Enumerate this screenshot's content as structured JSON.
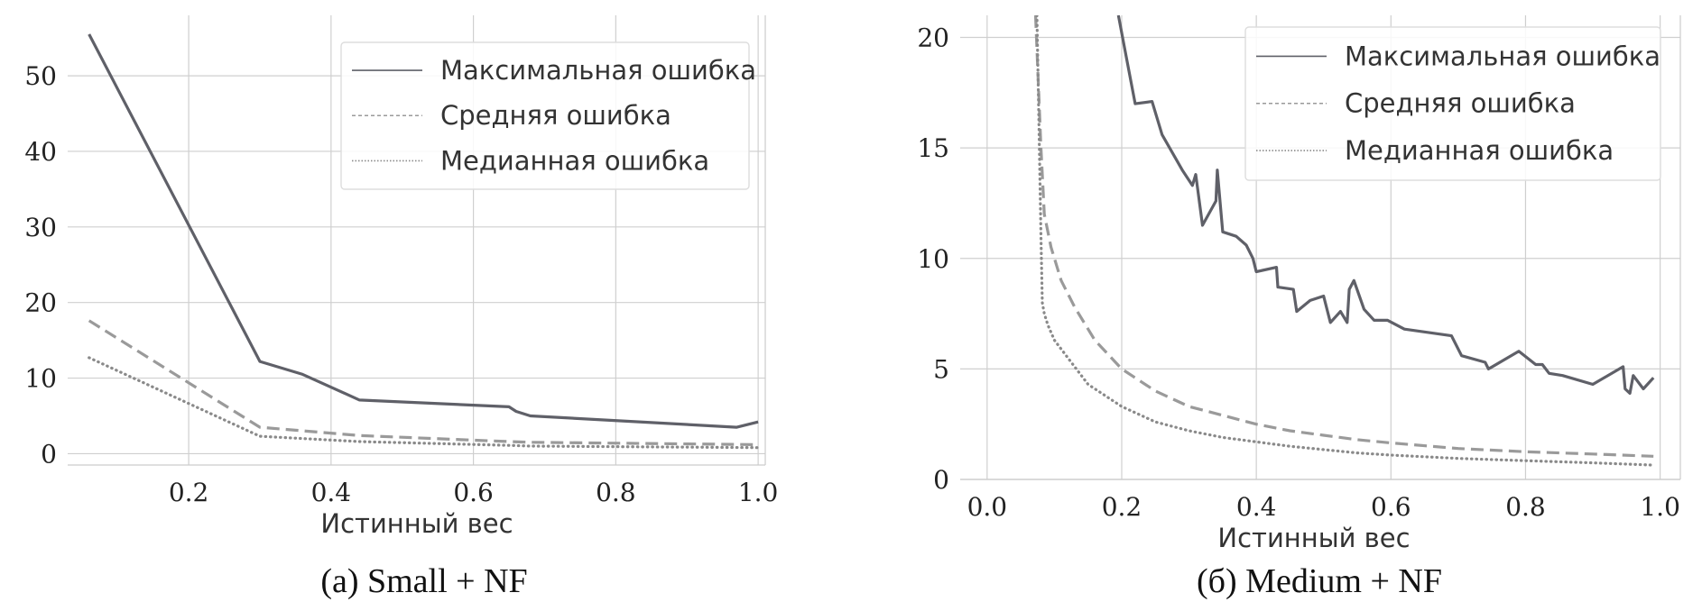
{
  "chart_data": [
    {
      "type": "line",
      "caption": "(a) Small + NF",
      "xlabel": "Истинный вес",
      "ylabel": "",
      "xlim": [
        0.03,
        1.01
      ],
      "ylim": [
        -1.5,
        58
      ],
      "xticks": [
        0.2,
        0.4,
        0.6,
        0.8,
        1.0
      ],
      "xtick_labels": [
        "0.2",
        "0.4",
        "0.6",
        "0.8",
        "1.0"
      ],
      "yticks": [
        0,
        10,
        20,
        30,
        40,
        50
      ],
      "ytick_labels": [
        "0",
        "10",
        "20",
        "30",
        "40",
        "50"
      ],
      "grid": true,
      "legend_position": "top-right",
      "series": [
        {
          "name": "Максимальная ошибка",
          "style": "solid",
          "color": "#5f6068",
          "x": [
            0.06,
            0.3,
            0.36,
            0.44,
            0.65,
            0.66,
            0.68,
            0.97,
            1.0
          ],
          "y": [
            55.5,
            12.2,
            10.5,
            7.1,
            6.2,
            5.6,
            5.0,
            3.5,
            4.2
          ]
        },
        {
          "name": "Средняя ошибка",
          "style": "dashed",
          "color": "#9a9a9a",
          "x": [
            0.06,
            0.3,
            0.44,
            0.65,
            0.68,
            1.0
          ],
          "y": [
            17.6,
            3.5,
            2.4,
            1.6,
            1.5,
            1.2
          ]
        },
        {
          "name": "Медианная ошибка",
          "style": "dotted",
          "color": "#8a8a8a",
          "x": [
            0.06,
            0.3,
            0.44,
            0.65,
            0.68,
            1.0
          ],
          "y": [
            12.7,
            2.3,
            1.6,
            1.1,
            1.0,
            0.8
          ]
        }
      ]
    },
    {
      "type": "line",
      "caption": "(б) Medium + NF",
      "xlabel": "Истинный вес",
      "ylabel": "",
      "xlim": [
        -0.04,
        1.03
      ],
      "ylim": [
        0,
        21
      ],
      "xticks": [
        0.0,
        0.2,
        0.4,
        0.6,
        0.8,
        1.0
      ],
      "xtick_labels": [
        "0.0",
        "0.2",
        "0.4",
        "0.6",
        "0.8",
        "1.0"
      ],
      "yticks": [
        0,
        5,
        10,
        15,
        20
      ],
      "ytick_labels": [
        "0",
        "5",
        "10",
        "15",
        "20"
      ],
      "grid": true,
      "legend_position": "top-right",
      "series": [
        {
          "name": "Максимальная ошибка",
          "style": "solid",
          "color": "#5f6068",
          "x": [
            0.195,
            0.205,
            0.22,
            0.245,
            0.26,
            0.29,
            0.305,
            0.31,
            0.32,
            0.34,
            0.342,
            0.35,
            0.37,
            0.385,
            0.395,
            0.4,
            0.43,
            0.432,
            0.455,
            0.46,
            0.48,
            0.5,
            0.51,
            0.525,
            0.535,
            0.538,
            0.545,
            0.56,
            0.575,
            0.595,
            0.62,
            0.69,
            0.705,
            0.74,
            0.745,
            0.79,
            0.815,
            0.825,
            0.835,
            0.855,
            0.9,
            0.945,
            0.948,
            0.955,
            0.96,
            0.975,
            0.99
          ],
          "y": [
            21.0,
            19.4,
            17.0,
            17.1,
            15.6,
            14.0,
            13.3,
            13.8,
            11.5,
            12.6,
            14.0,
            11.2,
            11.0,
            10.6,
            10.0,
            9.4,
            9.6,
            8.7,
            8.6,
            7.6,
            8.1,
            8.3,
            7.1,
            7.6,
            7.1,
            8.6,
            9.0,
            7.7,
            7.2,
            7.2,
            6.8,
            6.5,
            5.6,
            5.3,
            5.0,
            5.8,
            5.2,
            5.2,
            4.8,
            4.7,
            4.3,
            5.1,
            4.1,
            3.9,
            4.7,
            4.1,
            4.6
          ]
        },
        {
          "name": "Средняя ошибка",
          "style": "dashed",
          "color": "#9a9a9a",
          "x": [
            0.072,
            0.076,
            0.08,
            0.085,
            0.095,
            0.11,
            0.13,
            0.16,
            0.2,
            0.25,
            0.3,
            0.35,
            0.4,
            0.45,
            0.5,
            0.55,
            0.6,
            0.7,
            0.8,
            0.9,
            0.99
          ],
          "y": [
            21.0,
            18.0,
            15.0,
            12.0,
            10.5,
            9.0,
            7.8,
            6.3,
            5.0,
            4.0,
            3.3,
            2.9,
            2.5,
            2.2,
            2.0,
            1.8,
            1.65,
            1.4,
            1.25,
            1.15,
            1.05
          ]
        },
        {
          "name": "Медианная ошибка",
          "style": "dotted",
          "color": "#8a8a8a",
          "x": [
            0.074,
            0.077,
            0.08,
            0.082,
            0.085,
            0.09,
            0.1,
            0.12,
            0.15,
            0.2,
            0.25,
            0.3,
            0.35,
            0.4,
            0.45,
            0.5,
            0.55,
            0.6,
            0.7,
            0.8,
            0.9,
            0.99
          ],
          "y": [
            21.0,
            16.0,
            11.0,
            8.0,
            7.5,
            7.0,
            6.3,
            5.5,
            4.3,
            3.3,
            2.6,
            2.2,
            1.9,
            1.7,
            1.5,
            1.35,
            1.2,
            1.1,
            0.95,
            0.85,
            0.75,
            0.65
          ]
        }
      ]
    }
  ]
}
